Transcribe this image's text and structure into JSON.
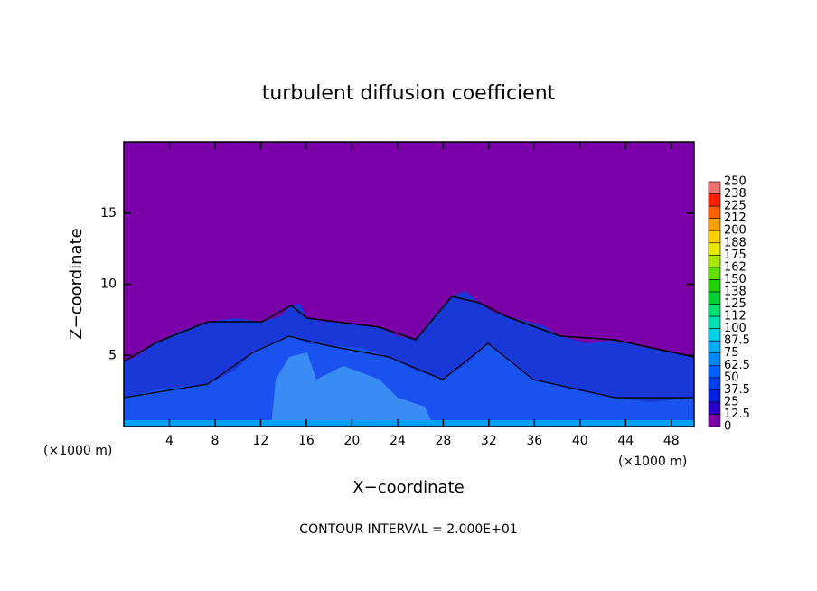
{
  "chart_data": {
    "type": "contour",
    "title": "turbulent diffusion coefficient",
    "x_label": "X−coordinate",
    "y_label": "Z−coordinate",
    "unit_label": "(×1000 m)",
    "footer": "CONTOUR INTERVAL = 2.000E+01",
    "xlim": [
      0,
      50
    ],
    "xticks": [
      4,
      8,
      12,
      16,
      20,
      24,
      28,
      32,
      36,
      40,
      44,
      48
    ],
    "ylim": [
      0,
      20
    ],
    "yticks": [
      5,
      10,
      15
    ],
    "colorbar": {
      "levels": [
        0,
        12.5,
        25,
        37.5,
        50,
        62.5,
        75,
        87.5,
        100,
        {
          "value": 112.5,
          "label": "112"
        },
        125,
        {
          "value": 137.5,
          "label": "138"
        },
        150,
        {
          "value": 162.5,
          "label": "162"
        },
        175,
        {
          "value": 187.5,
          "label": "188"
        },
        200,
        {
          "value": 212.5,
          "label": "212"
        },
        225,
        {
          "value": 237.5,
          "label": "238"
        },
        250
      ],
      "colors": [
        "#7a00a8",
        "#2a00c8",
        "#0022e0",
        "#0040f0",
        "#0060ff",
        "#0088ff",
        "#00aaff",
        "#00d0e8",
        "#00e0b0",
        "#00e070",
        "#00d030",
        "#20d000",
        "#60e000",
        "#a8e800",
        "#e8e800",
        "#ffd000",
        "#ffa000",
        "#ff6000",
        "#ff2000",
        "#f07070"
      ]
    }
  }
}
